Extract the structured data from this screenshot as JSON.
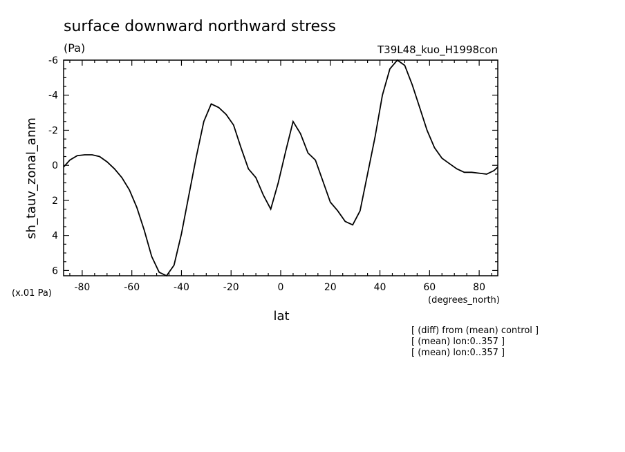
{
  "chart_data": {
    "type": "line",
    "title": "surface downward northward stress",
    "units": "(Pa)",
    "run_label": "T39L48_kuo_H1998con",
    "ylabel": "sh_tauv_zonal_anm",
    "yscale_note": "(x.01 Pa)",
    "xlabel": "lat",
    "xunits": "(degrees_north)",
    "notes": [
      "[ (diff) from (mean) control ]",
      "[ (mean) lon:0..357 ]",
      "[ (mean) lon:0..357 ]"
    ],
    "xlim": [
      -87.5,
      87.5
    ],
    "ylim": [
      6.3,
      -6.0
    ],
    "y_inverted": true,
    "xticks": [
      -80,
      -60,
      -40,
      -20,
      0,
      20,
      40,
      60,
      80
    ],
    "xtick_labels": [
      "-80",
      "-60",
      "-40",
      "-20",
      "0",
      "20",
      "40",
      "60",
      "80"
    ],
    "yticks": [
      -6,
      -4,
      -2,
      0,
      2,
      4,
      6
    ],
    "ytick_labels": [
      "-6",
      "-4",
      "-2",
      "0",
      "2",
      "4",
      "6"
    ],
    "x": [
      -87.5,
      -85,
      -82,
      -79,
      -76,
      -73,
      -70,
      -67,
      -64,
      -61,
      -58,
      -55,
      -52,
      -49,
      -46,
      -43,
      -40,
      -37,
      -34,
      -31,
      -28,
      -25,
      -22,
      -19,
      -16,
      -13,
      -10,
      -7,
      -4,
      -1,
      2,
      5,
      8,
      11,
      14,
      17,
      20,
      23,
      26,
      29,
      32,
      35,
      38,
      41,
      44,
      47,
      50,
      53,
      56,
      59,
      62,
      65,
      68,
      71,
      74,
      77,
      80,
      83,
      86,
      87.5
    ],
    "y": [
      0.1,
      -0.3,
      -0.55,
      -0.6,
      -0.6,
      -0.5,
      -0.2,
      0.2,
      0.7,
      1.4,
      2.4,
      3.7,
      5.2,
      6.1,
      6.3,
      5.7,
      3.9,
      1.7,
      -0.5,
      -2.5,
      -3.5,
      -3.3,
      -2.9,
      -2.3,
      -1.0,
      0.2,
      0.7,
      1.7,
      2.5,
      1.0,
      -0.8,
      -2.5,
      -1.8,
      -0.7,
      -0.3,
      0.9,
      2.1,
      2.6,
      3.2,
      3.4,
      2.6,
      0.5,
      -1.6,
      -4.0,
      -5.5,
      -6.0,
      -5.7,
      -4.6,
      -3.3,
      -2.0,
      -1.0,
      -0.4,
      -0.1,
      0.2,
      0.4,
      0.4,
      0.45,
      0.5,
      0.3,
      0.1
    ]
  }
}
